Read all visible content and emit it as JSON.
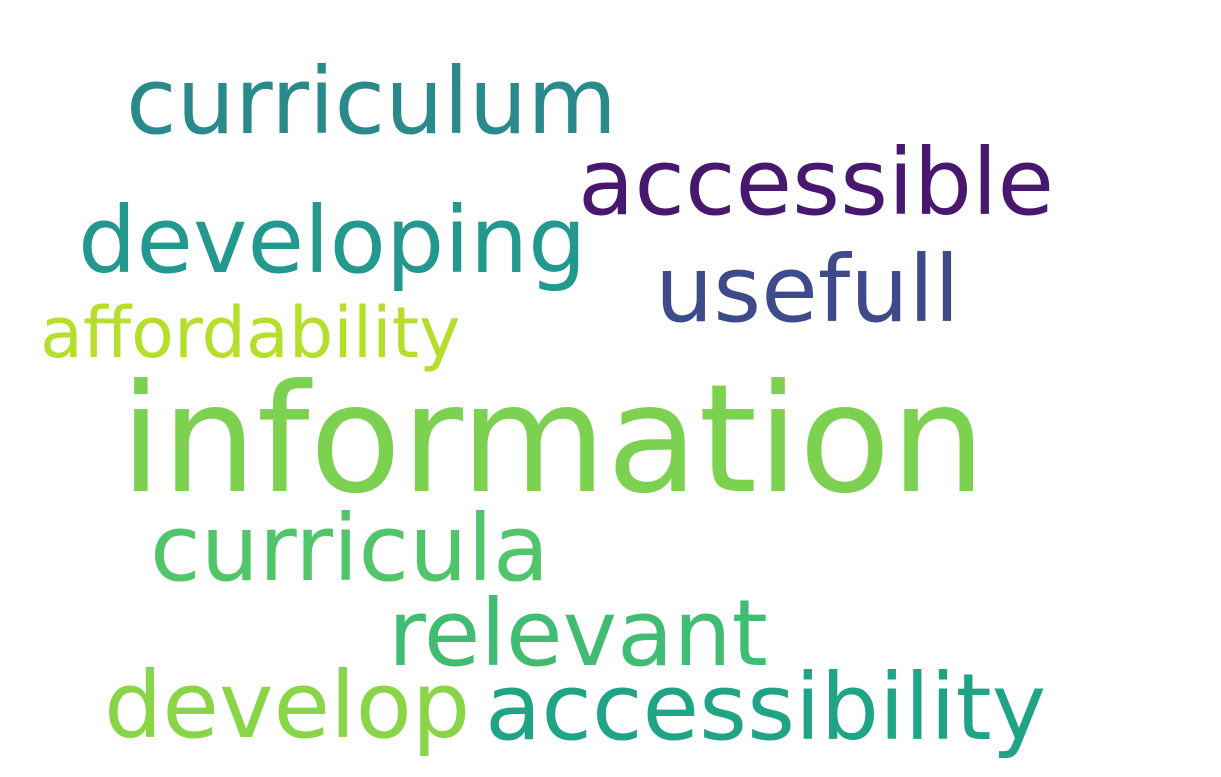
{
  "word_cloud": {
    "words": [
      {
        "id": "curriculum",
        "text": "curriculum",
        "color": "#2a8a8b"
      },
      {
        "id": "accessible",
        "text": "accessible",
        "color": "#47186d"
      },
      {
        "id": "developing",
        "text": "developing",
        "color": "#23988f"
      },
      {
        "id": "usefull",
        "text": "usefull",
        "color": "#3f4a8a"
      },
      {
        "id": "affordability",
        "text": "affordability",
        "color": "#b7de2b"
      },
      {
        "id": "information",
        "text": "information",
        "color": "#7cd250"
      },
      {
        "id": "curricula",
        "text": "curricula",
        "color": "#51c569"
      },
      {
        "id": "relevant",
        "text": "relevant",
        "color": "#40bd72"
      },
      {
        "id": "develop",
        "text": "develop",
        "color": "#89d548"
      },
      {
        "id": "accessibility",
        "text": "accessibility",
        "color": "#20a486"
      }
    ]
  }
}
